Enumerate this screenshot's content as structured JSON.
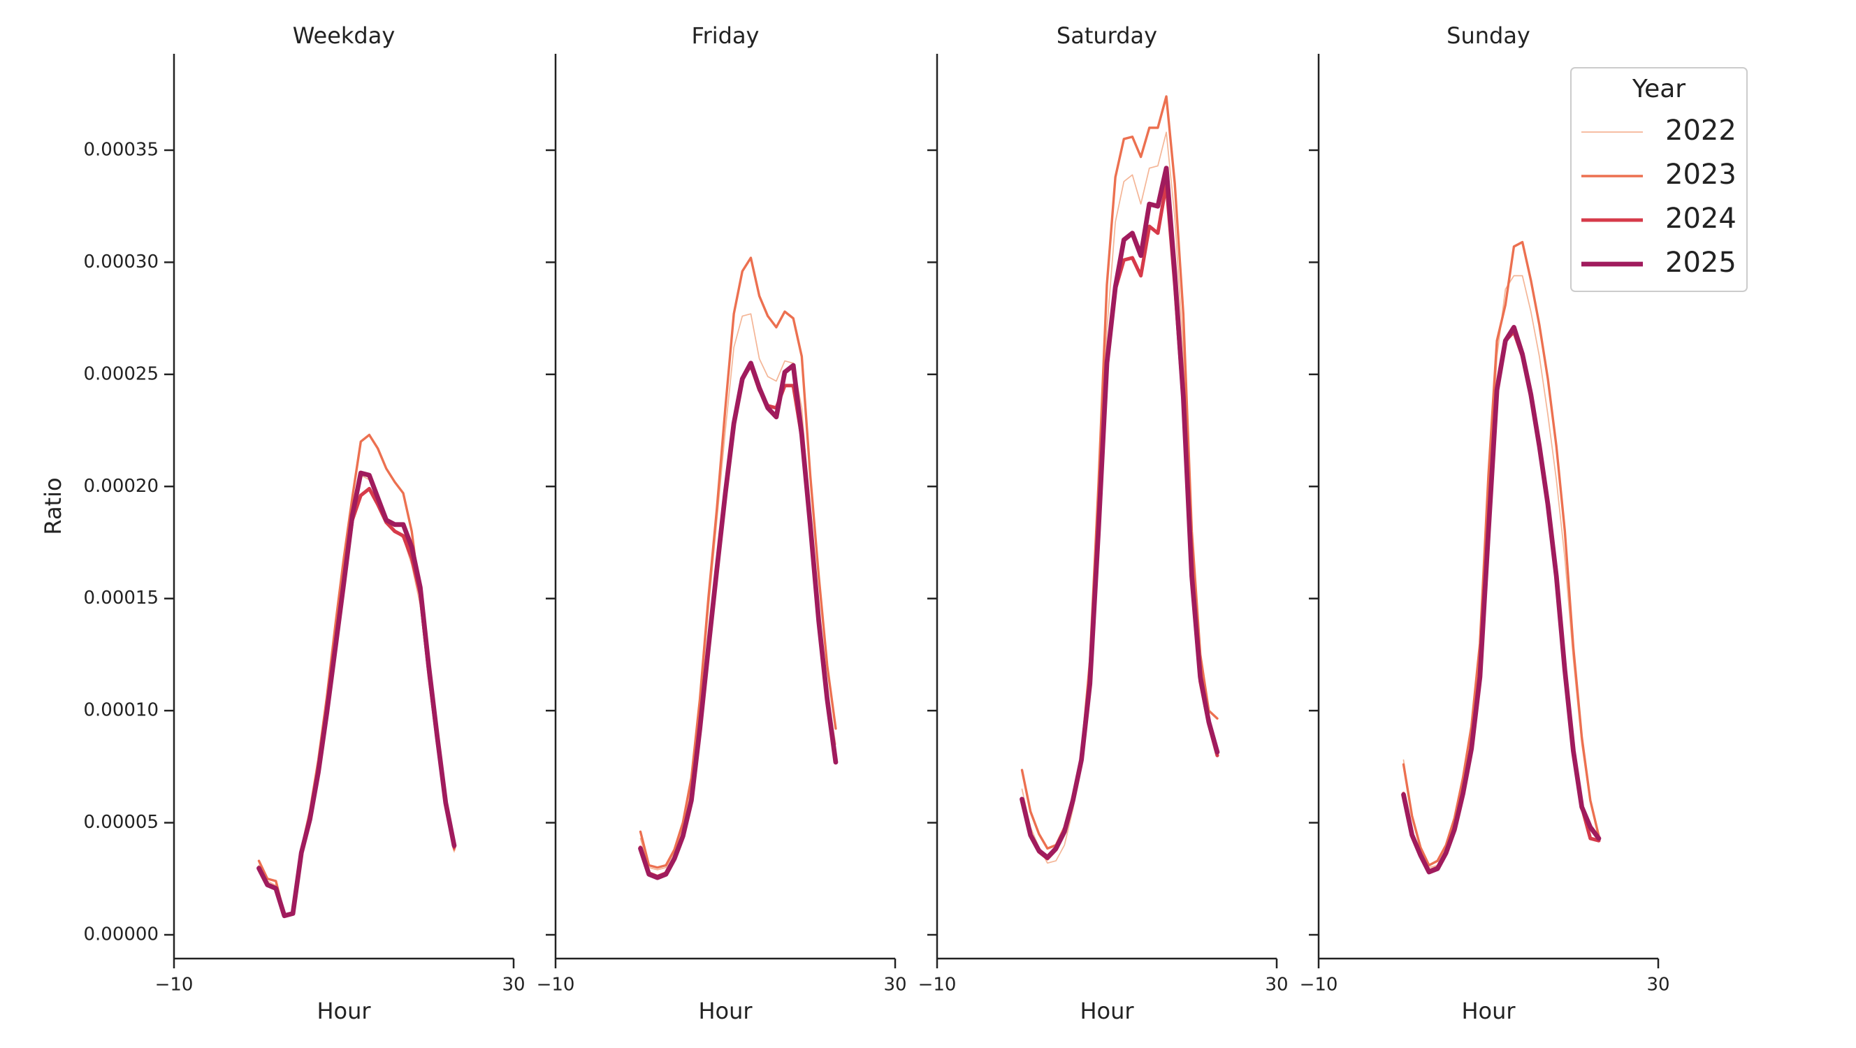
{
  "chart_data": [
    {
      "type": "line",
      "title": "Weekday",
      "xlabel": "Hour",
      "ylabel": "Ratio",
      "x": [
        0,
        1,
        2,
        3,
        4,
        5,
        6,
        7,
        8,
        9,
        10,
        11,
        12,
        13,
        14,
        15,
        16,
        17,
        18,
        19,
        20,
        21,
        22,
        23
      ],
      "xlim": [
        -10,
        30
      ],
      "xticks": [
        {
          "value": -10,
          "label": "−10"
        },
        30
      ],
      "ylim": [
        -1.06e-05,
        0.000393
      ],
      "yticks": [
        {
          "value": 0,
          "label": "0.00000"
        },
        5e-05,
        {
          "value": 0.0001,
          "label": "0.00010"
        },
        0.00015,
        {
          "value": 0.0002,
          "label": "0.00020"
        },
        0.00025,
        {
          "value": 0.0003,
          "label": "0.00030"
        },
        0.00035
      ],
      "series": [
        {
          "name": "2022",
          "color": "#f4b596",
          "width": 1,
          "values": [
            3.1e-05,
            2.4e-05,
            2.2e-05,
            9e-06,
            1e-05,
            3.7e-05,
            5.2e-05,
            7.4e-05,
            0.0001,
            0.00013,
            0.00016,
            0.00019,
            0.000205,
            0.000203,
            0.000193,
            0.000184,
            0.00018,
            0.000177,
            0.000165,
            0.000147,
            0.000114,
            8.5e-05,
            5.7e-05,
            3.7e-05
          ]
        },
        {
          "name": "2023",
          "color": "#ec7050",
          "width": 2,
          "values": [
            3.3e-05,
            2.5e-05,
            2.4e-05,
            9e-06,
            1e-05,
            3.8e-05,
            5.5e-05,
            7.8e-05,
            0.000106,
            0.000138,
            0.000168,
            0.000195,
            0.00022,
            0.000223,
            0.000217,
            0.000208,
            0.000202,
            0.000197,
            0.00018,
            0.00015,
            0.000115,
            8.5e-05,
            5.7e-05,
            3.8e-05
          ]
        },
        {
          "name": "2024",
          "color": "#d63a4a",
          "width": 3,
          "values": [
            3e-05,
            2.25e-05,
            2.1e-05,
            8.5e-06,
            9.5e-06,
            3.65e-05,
            5.2e-05,
            7.3e-05,
            0.0001,
            0.00013,
            0.000158,
            0.000185,
            0.000196,
            0.000199,
            0.000192,
            0.000184,
            0.00018,
            0.000178,
            0.000168,
            0.000152,
            0.000118,
            8.7e-05,
            5.8e-05,
            3.9e-05
          ]
        },
        {
          "name": "2025",
          "color": "#a01b5d",
          "width": 4,
          "values": [
            2.97e-05,
            2.23e-05,
            2.07e-05,
            8.5e-06,
            9.5e-06,
            3.66e-05,
            5.14e-05,
            7.26e-05,
            9.91e-05,
            0.000128,
            0.000157,
            0.000187,
            0.000206,
            0.000205,
            0.000195,
            0.000185,
            0.000183,
            0.000183,
            0.000173,
            0.000155,
            0.00012,
            8.85e-05,
            5.89e-05,
            3.98e-05
          ]
        }
      ]
    },
    {
      "type": "line",
      "title": "Friday",
      "xlabel": "Hour",
      "x": [
        0,
        1,
        2,
        3,
        4,
        5,
        6,
        7,
        8,
        9,
        10,
        11,
        12,
        13,
        14,
        15,
        16,
        17,
        18,
        19,
        20,
        21,
        22,
        23
      ],
      "xlim": [
        -10,
        30
      ],
      "xticks": [
        {
          "value": -10,
          "label": "−10"
        },
        30
      ],
      "ylim": [
        -1.06e-05,
        0.000393
      ],
      "yticks": [
        0,
        5e-05,
        0.0001,
        0.00015,
        0.0002,
        0.00025,
        0.0003,
        0.00035
      ],
      "series": [
        {
          "name": "2022",
          "color": "#f4b596",
          "width": 1,
          "values": [
            4.3e-05,
            3e-05,
            2.9e-05,
            3e-05,
            3.7e-05,
            4.8e-05,
            6.6e-05,
            0.0001,
            0.000145,
            0.000185,
            0.000225,
            0.000262,
            0.000276,
            0.000277,
            0.000257,
            0.000249,
            0.000247,
            0.000256,
            0.000255,
            0.000235,
            0.000185,
            0.000145,
            0.000108,
            8.5e-05
          ]
        },
        {
          "name": "2023",
          "color": "#ec7050",
          "width": 2,
          "values": [
            4.6e-05,
            3.1e-05,
            3e-05,
            3.1e-05,
            3.8e-05,
            5e-05,
            7e-05,
            0.000105,
            0.00015,
            0.00019,
            0.000235,
            0.000277,
            0.000296,
            0.000302,
            0.000285,
            0.000276,
            0.000271,
            0.000278,
            0.000275,
            0.000258,
            0.000205,
            0.00016,
            0.00012,
            9.2e-05
          ]
        },
        {
          "name": "2024",
          "color": "#d63a4a",
          "width": 3,
          "values": [
            3.9e-05,
            2.75e-05,
            2.6e-05,
            2.75e-05,
            3.45e-05,
            4.45e-05,
            6.1e-05,
            9.3e-05,
            0.000129,
            0.000164,
            0.000198,
            0.000229,
            0.000248,
            0.000254,
            0.000243,
            0.000236,
            0.000235,
            0.000245,
            0.000245,
            0.000222,
            0.000182,
            0.00014,
            0.000105,
            7.8e-05
          ]
        },
        {
          "name": "2025",
          "color": "#a01b5d",
          "width": 4,
          "values": [
            3.85e-05,
            2.7e-05,
            2.55e-05,
            2.7e-05,
            3.4e-05,
            4.4e-05,
            6e-05,
            9.2e-05,
            0.000128,
            0.000163,
            0.000197,
            0.000228,
            0.000248,
            0.000255,
            0.000244,
            0.000235,
            0.000231,
            0.000251,
            0.000254,
            0.000223,
            0.000183,
            0.00014,
            0.000105,
            7.7e-05
          ]
        }
      ]
    },
    {
      "type": "line",
      "title": "Saturday",
      "xlabel": "Hour",
      "x": [
        0,
        1,
        2,
        3,
        4,
        5,
        6,
        7,
        8,
        9,
        10,
        11,
        12,
        13,
        14,
        15,
        16,
        17,
        18,
        19,
        20,
        21,
        22,
        23
      ],
      "xlim": [
        -10,
        30
      ],
      "xticks": [
        {
          "value": -10,
          "label": "−10"
        },
        30
      ],
      "ylim": [
        -1.06e-05,
        0.000393
      ],
      "yticks": [
        0,
        5e-05,
        0.0001,
        0.00015,
        0.0002,
        0.00025,
        0.0003,
        0.00035
      ],
      "series": [
        {
          "name": "2022",
          "color": "#f4b596",
          "width": 1,
          "values": [
            6.5e-05,
            4.8e-05,
            3.9e-05,
            3.2e-05,
            3.3e-05,
            4e-05,
            5.6e-05,
            7.5e-05,
            0.000115,
            0.00019,
            0.00027,
            0.000318,
            0.000336,
            0.000339,
            0.000326,
            0.000342,
            0.000343,
            0.000358,
            0.00032,
            0.00026,
            0.000172,
            0.00012,
            9.5e-05,
            8e-05
          ]
        },
        {
          "name": "2023",
          "color": "#ec7050",
          "width": 2,
          "values": [
            7.35e-05,
            5.5e-05,
            4.5e-05,
            3.85e-05,
            4e-05,
            4.8e-05,
            6.2e-05,
            8e-05,
            0.000122,
            0.0002,
            0.00029,
            0.000338,
            0.000355,
            0.000356,
            0.000347,
            0.00036,
            0.00036,
            0.000374,
            0.000335,
            0.000277,
            0.00018,
            0.000125,
            0.0001,
            9.65e-05
          ]
        },
        {
          "name": "2024",
          "color": "#d63a4a",
          "width": 3,
          "values": [
            6e-05,
            4.4e-05,
            3.7e-05,
            3.4e-05,
            3.8e-05,
            4.6e-05,
            6e-05,
            7.8e-05,
            0.000112,
            0.00018,
            0.000254,
            0.000288,
            0.000301,
            0.000302,
            0.000294,
            0.000316,
            0.000313,
            0.000335,
            0.00029,
            0.000238,
            0.000158,
            0.000113,
            9.4e-05,
            8e-05
          ]
        },
        {
          "name": "2025",
          "color": "#a01b5d",
          "width": 4,
          "values": [
            6.05e-05,
            4.45e-05,
            3.75e-05,
            3.45e-05,
            3.85e-05,
            4.6e-05,
            6e-05,
            7.8e-05,
            0.000112,
            0.00018,
            0.000255,
            0.000289,
            0.00031,
            0.000313,
            0.000303,
            0.000326,
            0.000325,
            0.000342,
            0.000295,
            0.00024,
            0.00016,
            0.000115,
            9.5e-05,
            8.15e-05
          ]
        }
      ]
    },
    {
      "type": "line",
      "title": "Sunday",
      "xlabel": "Hour",
      "legend_title": "Year",
      "legend": "upper right",
      "x": [
        0,
        1,
        2,
        3,
        4,
        5,
        6,
        7,
        8,
        9,
        10,
        11,
        12,
        13,
        14,
        15,
        16,
        17,
        18,
        19,
        20,
        21,
        22,
        23
      ],
      "xlim": [
        -10,
        30
      ],
      "xticks": [
        {
          "value": -10,
          "label": "−10"
        },
        30
      ],
      "ylim": [
        -1.06e-05,
        0.000393
      ],
      "yticks": [
        0,
        5e-05,
        0.0001,
        0.00015,
        0.0002,
        0.00025,
        0.0003,
        0.00035
      ],
      "series": [
        {
          "name": "2022",
          "color": "#f4b596",
          "width": 1,
          "values": [
            7.8e-05,
            5.2e-05,
            3.8e-05,
            3e-05,
            3.1e-05,
            3.8e-05,
            4.9e-05,
            6.6e-05,
            8.8e-05,
            0.000122,
            0.00019,
            0.000258,
            0.000288,
            0.000294,
            0.000294,
            0.000278,
            0.000258,
            0.000232,
            0.000203,
            0.000168,
            0.000123,
            8.5e-05,
            5.9e-05,
            4.4e-05
          ]
        },
        {
          "name": "2023",
          "color": "#ec7050",
          "width": 2,
          "values": [
            7.6e-05,
            5.3e-05,
            3.9e-05,
            3.1e-05,
            3.3e-05,
            4e-05,
            5.2e-05,
            7e-05,
            9.3e-05,
            0.00013,
            0.000205,
            0.000265,
            0.000281,
            0.000307,
            0.000309,
            0.000292,
            0.000272,
            0.000248,
            0.000218,
            0.00018,
            0.000128,
            8.8e-05,
            6e-05,
            4.4e-05
          ]
        },
        {
          "name": "2024",
          "color": "#d63a4a",
          "width": 3,
          "values": [
            6.3e-05,
            4.5e-05,
            3.6e-05,
            2.85e-05,
            3e-05,
            3.7e-05,
            4.7e-05,
            6.3e-05,
            8.3e-05,
            0.000115,
            0.00018,
            0.000243,
            0.000265,
            0.000269,
            0.000258,
            0.00024,
            0.000217,
            0.000191,
            0.000159,
            0.000118,
            8.2e-05,
            5.7e-05,
            4.3e-05,
            4.2e-05
          ]
        },
        {
          "name": "2025",
          "color": "#a01b5d",
          "width": 4,
          "values": [
            6.25e-05,
            4.45e-05,
            3.55e-05,
            2.8e-05,
            2.95e-05,
            3.65e-05,
            4.7e-05,
            6.3e-05,
            8.3e-05,
            0.000115,
            0.00018,
            0.000243,
            0.000265,
            0.000271,
            0.000259,
            0.000241,
            0.000218,
            0.000192,
            0.00016,
            0.000118,
            8.2e-05,
            5.7e-05,
            4.8e-05,
            4.3e-05
          ]
        }
      ]
    }
  ]
}
